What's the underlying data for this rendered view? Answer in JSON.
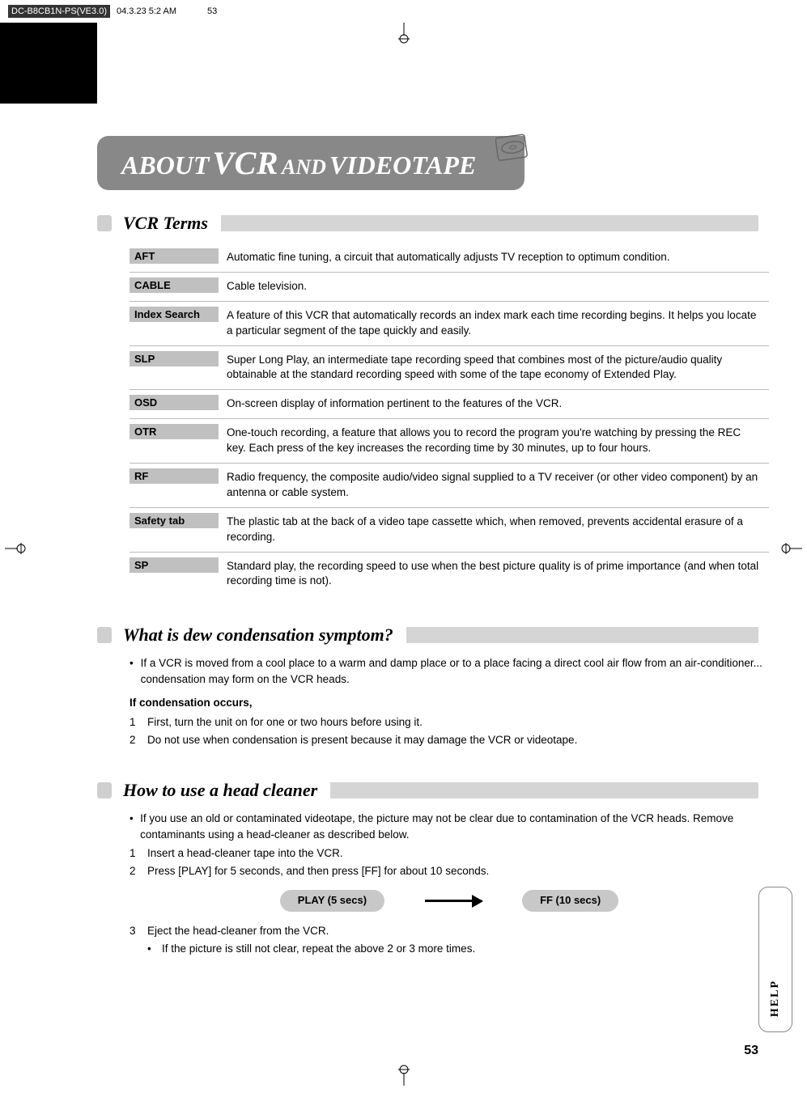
{
  "header": {
    "file": "DC-B8CB1N-PS(VE3.0)",
    "date": "04.3.23 5:2 AM",
    "page_mark": "53"
  },
  "title": {
    "about": "ABOUT",
    "vcr": "VCR",
    "and": "AND",
    "videotape": "VIDEOTAPE"
  },
  "sections": {
    "terms": {
      "title": "VCR Terms",
      "rows": [
        {
          "label": "AFT",
          "def": "Automatic fine tuning, a circuit that automatically adjusts TV reception to optimum condition."
        },
        {
          "label": "CABLE",
          "def": "Cable television."
        },
        {
          "label": "Index Search",
          "def": "A feature of this VCR that automatically records an index mark each time recording begins. It helps you locate a particular segment of the tape quickly and easily."
        },
        {
          "label": "SLP",
          "def": "Super Long Play, an intermediate tape recording speed that combines most of the picture/audio quality obtainable at the standard recording speed with some of the tape economy of Extended Play."
        },
        {
          "label": "OSD",
          "def": "On-screen display of information pertinent to the features of the VCR."
        },
        {
          "label": "OTR",
          "def": "One-touch recording, a feature that allows you to record the program you're watching by pressing the REC key. Each press of the key increases the recording time by 30 minutes, up to four hours."
        },
        {
          "label": "RF",
          "def": "Radio frequency, the composite audio/video signal supplied to a TV receiver (or other video component) by an antenna or cable system."
        },
        {
          "label": "Safety tab",
          "def": "The plastic tab at the back of a video tape cassette which, when removed, prevents accidental erasure of a recording."
        },
        {
          "label": "SP",
          "def": "Standard play, the recording speed to use when the best picture quality is of prime importance (and when total recording time is not)."
        }
      ]
    },
    "dew": {
      "title": "What is dew condensation symptom?",
      "bullet": "If a VCR is moved from a cool place to a warm and damp place or to a place facing a direct cool air flow from an air-conditioner... condensation may form on the VCR heads.",
      "subhead": "If condensation occurs,",
      "steps": [
        "First, turn the unit on for one or two hours before using it.",
        "Do not use when condensation is present because it may damage the VCR or videotape."
      ]
    },
    "cleaner": {
      "title": "How to use a head cleaner",
      "bullet": "If you use an old or contaminated videotape, the picture may not be clear due to contamination of the VCR heads. Remove contaminants using a head-cleaner as described below.",
      "steps12": [
        "Insert a head-cleaner tape into the VCR.",
        "Press [PLAY] for 5 seconds, and then press [FF] for about 10 seconds."
      ],
      "play_label": "PLAY (5 secs)",
      "ff_label": "FF (10 secs)",
      "step3": "Eject the head-cleaner from the VCR.",
      "step3_sub": "If the picture is still not clear, repeat the above 2 or 3 more times."
    }
  },
  "help_tab": "HELP",
  "page_number": "53",
  "colors": {
    "ribbon": "#888888",
    "section_bar": "#d5d5d5",
    "term_label_bg": "#c0c0c0",
    "pill_bg": "#c8c8c8"
  }
}
